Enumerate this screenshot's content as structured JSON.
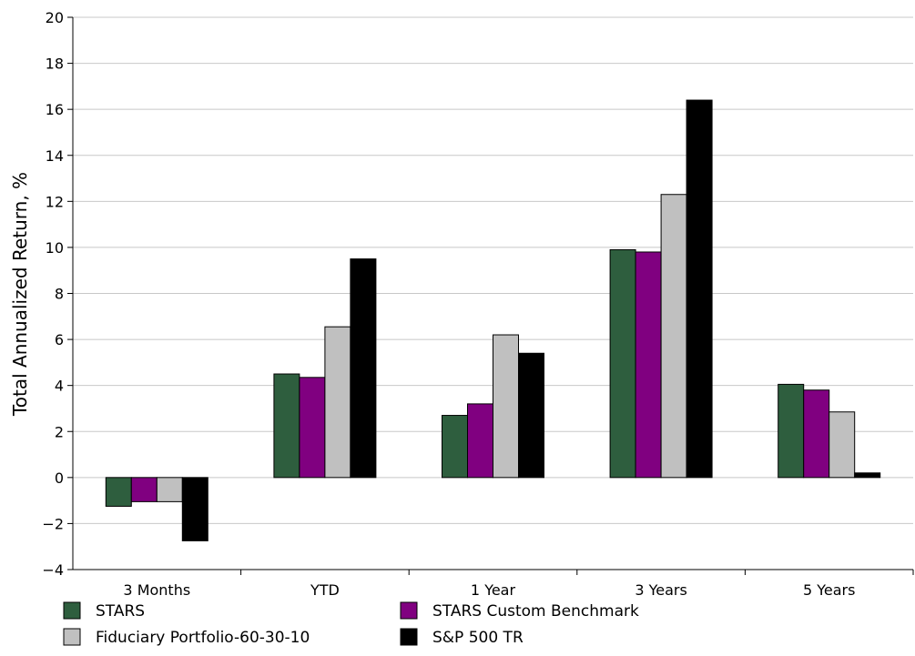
{
  "chart_data": {
    "type": "bar",
    "title": "",
    "xlabel": "",
    "ylabel": "Total Annualized Return, %",
    "ylim": [
      -4,
      20
    ],
    "yticks": [
      -4,
      -2,
      0,
      2,
      4,
      6,
      8,
      10,
      12,
      14,
      16,
      18,
      20
    ],
    "grid": true,
    "legend_position": "bottom",
    "categories": [
      "3 Months",
      "YTD",
      "1 Year",
      "3 Years",
      "5 Years"
    ],
    "series": [
      {
        "name": "STARS",
        "color": "#2e5e3e",
        "values": [
          -1.25,
          4.5,
          2.7,
          9.9,
          4.05
        ]
      },
      {
        "name": "STARS Custom Benchmark",
        "color": "#800080",
        "values": [
          -1.05,
          4.35,
          3.2,
          9.8,
          3.8
        ]
      },
      {
        "name": "Fiduciary Portfolio-60-30-10",
        "color": "#c0c0c0",
        "values": [
          -1.05,
          6.55,
          6.2,
          12.3,
          2.85
        ]
      },
      {
        "name": "S&P 500 TR",
        "color": "#000000",
        "values": [
          -2.75,
          9.5,
          5.4,
          16.4,
          0.2
        ]
      }
    ]
  }
}
